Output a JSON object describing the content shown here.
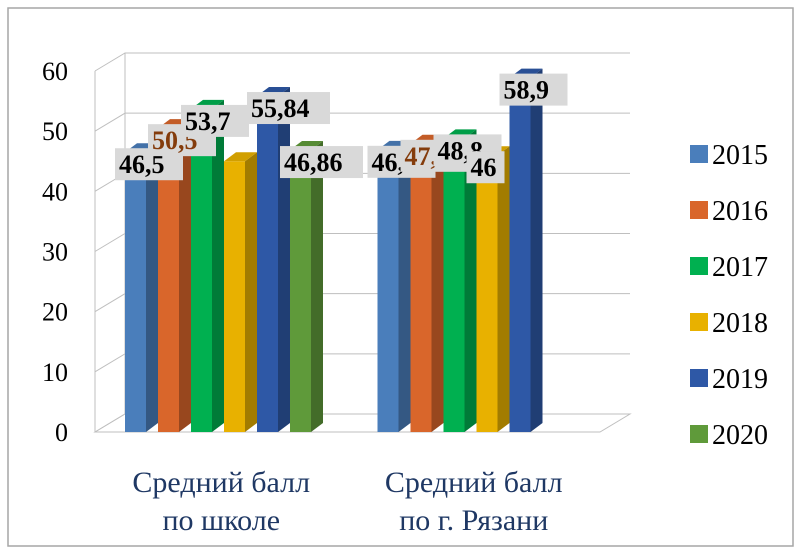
{
  "chart_data": {
    "type": "bar3d",
    "categories": [
      [
        "Средний балл",
        "по школе"
      ],
      [
        "Средний балл",
        "по г. Рязани"
      ]
    ],
    "series": [
      {
        "name": "2015",
        "color": "#4a7ebb",
        "values": [
          46.5,
          46.9
        ],
        "value_labels": [
          "46,5",
          "46,9"
        ],
        "label_color": "#000000"
      },
      {
        "name": "2016",
        "color": "#d9662b",
        "values": [
          50.5,
          47.9
        ],
        "value_labels": [
          "50,5",
          "47,9"
        ],
        "label_color": "#843c0c"
      },
      {
        "name": "2017",
        "color": "#00b050",
        "values": [
          53.7,
          48.8
        ],
        "value_labels": [
          "53,7",
          "48,8"
        ],
        "label_color": "#000000"
      },
      {
        "name": "2018",
        "color": "#e8b100",
        "values": [
          45,
          46
        ],
        "value_labels": [
          null,
          "46"
        ],
        "label_color": "#000000"
      },
      {
        "name": "2019",
        "color": "#2e58a6",
        "values": [
          55.84,
          58.9
        ],
        "value_labels": [
          "55,84",
          "58,9"
        ],
        "label_color": "#000000"
      },
      {
        "name": "2020",
        "color": "#5f9a3a",
        "values": [
          46.86,
          null
        ],
        "value_labels": [
          "46,86",
          null
        ],
        "label_color": "#000000"
      }
    ],
    "ylim": [
      0,
      60
    ],
    "yticks": [
      0,
      10,
      20,
      30,
      40,
      50,
      60
    ],
    "grid": true,
    "legend": "right"
  }
}
